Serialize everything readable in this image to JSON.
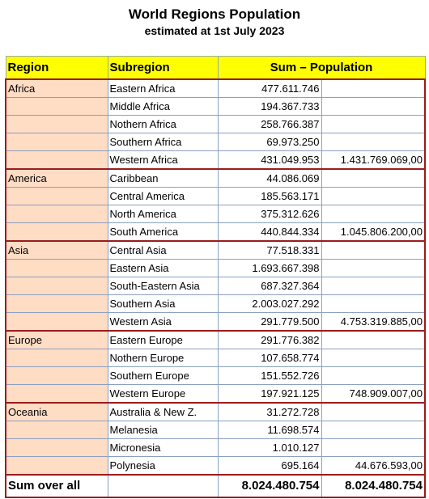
{
  "title": "World Regions Population",
  "subtitle": "estimated at 1st July 2023",
  "headers": {
    "region": "Region",
    "subregion": "Subregion",
    "sum": "Sum – Population"
  },
  "rows": [
    [
      "Africa",
      "Eastern Africa",
      "477.611.746",
      ""
    ],
    [
      "",
      "Middle Africa",
      "194.367.733",
      ""
    ],
    [
      "",
      "Nothern Africa",
      "258.766.387",
      ""
    ],
    [
      "",
      "Southern Africa",
      "69.973.250",
      ""
    ],
    [
      "",
      "Western Africa",
      "431.049.953",
      "1.431.769.069,00"
    ],
    [
      "America",
      "Caribbean",
      "44.086.069",
      ""
    ],
    [
      "",
      "Central America",
      "185.563.171",
      ""
    ],
    [
      "",
      "North America",
      "375.312.626",
      ""
    ],
    [
      "",
      "South America",
      "440.844.334",
      "1.045.806.200,00"
    ],
    [
      "Asia",
      "Central Asia",
      "77.518.331",
      ""
    ],
    [
      "",
      "Eastern Asia",
      "1.693.667.398",
      ""
    ],
    [
      "",
      "South-Eastern Asia",
      "687.327.364",
      ""
    ],
    [
      "",
      "Southern Asia",
      "2.003.027.292",
      ""
    ],
    [
      "",
      "Western Asia",
      "291.779.500",
      "4.753.319.885,00"
    ],
    [
      "Europe",
      "Eastern Europe",
      "291.776.382",
      ""
    ],
    [
      "",
      "Nothern Europe",
      "107.658.774",
      ""
    ],
    [
      "",
      "Southern Europe",
      "151.552.726",
      ""
    ],
    [
      "",
      "Western Europe",
      "197.921.125",
      "748.909.007,00"
    ],
    [
      "Oceania",
      "Australia & New Z.",
      "31.272.728",
      ""
    ],
    [
      "",
      "Melanesia",
      "11.698.574",
      ""
    ],
    [
      "",
      "Micronesia",
      "1.010.127",
      ""
    ],
    [
      "",
      "Polynesia",
      "695.164",
      "44.676.593,00"
    ]
  ],
  "footer": {
    "label": "Sum over all",
    "sum": "8.024.480.754",
    "grand": "8.024.480.754"
  }
}
